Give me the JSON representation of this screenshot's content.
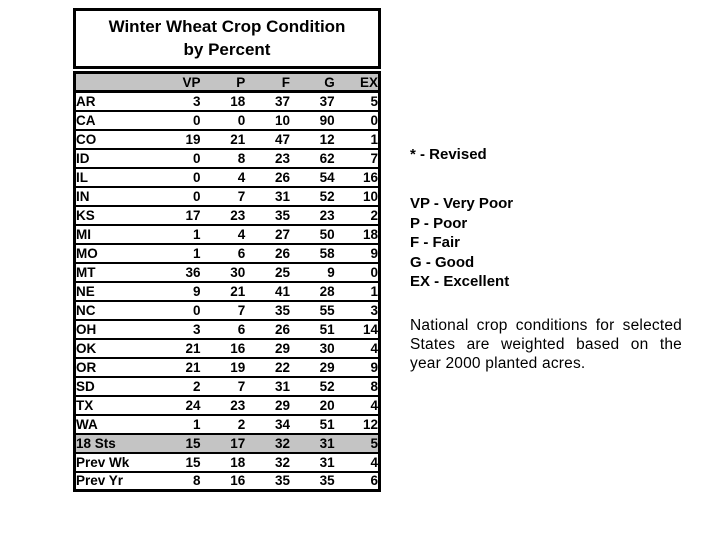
{
  "table": {
    "title_line1": "Winter Wheat Crop Condition",
    "title_line2": "by Percent",
    "columns": [
      "VP",
      "P",
      "F",
      "G",
      "EX"
    ],
    "rows": [
      {
        "label": "AR",
        "values": [
          3,
          18,
          37,
          37,
          5
        ],
        "highlight": false
      },
      {
        "label": "CA",
        "values": [
          0,
          0,
          10,
          90,
          0
        ],
        "highlight": false
      },
      {
        "label": "CO",
        "values": [
          19,
          21,
          47,
          12,
          1
        ],
        "highlight": false
      },
      {
        "label": "ID",
        "values": [
          0,
          8,
          23,
          62,
          7
        ],
        "highlight": false
      },
      {
        "label": "IL",
        "values": [
          0,
          4,
          26,
          54,
          16
        ],
        "highlight": false
      },
      {
        "label": "IN",
        "values": [
          0,
          7,
          31,
          52,
          10
        ],
        "highlight": false
      },
      {
        "label": "KS",
        "values": [
          17,
          23,
          35,
          23,
          2
        ],
        "highlight": false
      },
      {
        "label": "MI",
        "values": [
          1,
          4,
          27,
          50,
          18
        ],
        "highlight": false
      },
      {
        "label": "MO",
        "values": [
          1,
          6,
          26,
          58,
          9
        ],
        "highlight": false
      },
      {
        "label": "MT",
        "values": [
          36,
          30,
          25,
          9,
          0
        ],
        "highlight": false
      },
      {
        "label": "NE",
        "values": [
          9,
          21,
          41,
          28,
          1
        ],
        "highlight": false
      },
      {
        "label": "NC",
        "values": [
          0,
          7,
          35,
          55,
          3
        ],
        "highlight": false
      },
      {
        "label": "OH",
        "values": [
          3,
          6,
          26,
          51,
          14
        ],
        "highlight": false
      },
      {
        "label": "OK",
        "values": [
          21,
          16,
          29,
          30,
          4
        ],
        "highlight": false
      },
      {
        "label": "OR",
        "values": [
          21,
          19,
          22,
          29,
          9
        ],
        "highlight": false
      },
      {
        "label": "SD",
        "values": [
          2,
          7,
          31,
          52,
          8
        ],
        "highlight": false
      },
      {
        "label": "TX",
        "values": [
          24,
          23,
          29,
          20,
          4
        ],
        "highlight": false
      },
      {
        "label": "WA",
        "values": [
          1,
          2,
          34,
          51,
          12
        ],
        "highlight": false
      },
      {
        "label": "18 Sts",
        "values": [
          15,
          17,
          32,
          31,
          5
        ],
        "highlight": true
      },
      {
        "label": "Prev Wk",
        "values": [
          15,
          18,
          32,
          31,
          4
        ],
        "highlight": false
      },
      {
        "label": "Prev Yr",
        "values": [
          8,
          16,
          35,
          35,
          6
        ],
        "highlight": false
      }
    ],
    "header_bg": "#c4c4c4",
    "highlight_bg": "#c4c4c4"
  },
  "sidebar": {
    "revised_note": "* - Revised",
    "legend": [
      "VP - Very Poor",
      "P - Poor",
      "F - Fair",
      "G - Good",
      "EX - Excellent"
    ],
    "note": "National crop conditions for selected States are weighted based on the year 2000 planted acres."
  }
}
